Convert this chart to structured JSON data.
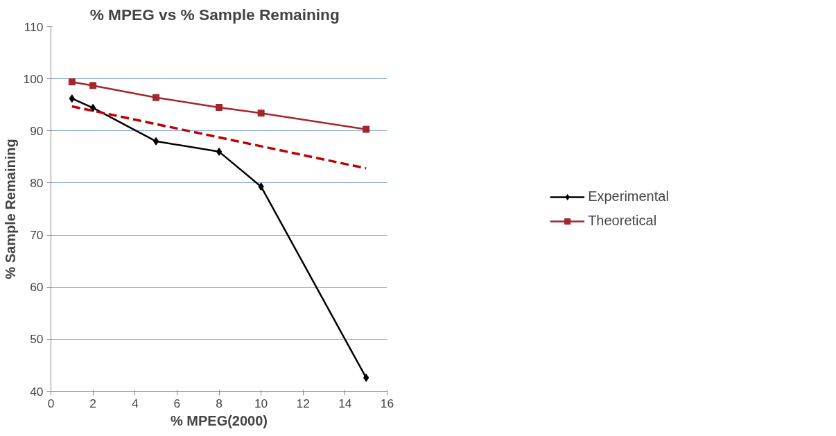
{
  "chart_data": {
    "type": "line",
    "title": "% MPEG  vs  % Sample Remaining",
    "xlabel": "% MPEG(2000)",
    "ylabel": "% Sample Remaining",
    "xlim": [
      0,
      16
    ],
    "xticks": [
      0,
      2,
      4,
      6,
      8,
      10,
      12,
      14,
      16
    ],
    "ylim": [
      40,
      110
    ],
    "yticks": [
      40,
      50,
      60,
      70,
      80,
      90,
      100,
      110
    ],
    "grid": "y",
    "legend": "right",
    "series": [
      {
        "name": "Experimental",
        "color": "#000000",
        "marker": "diamond",
        "line_style": "solid",
        "x": [
          1,
          2,
          5,
          8,
          10,
          15
        ],
        "values": [
          96.2,
          94.4,
          88.0,
          86.0,
          79.3,
          42.6
        ]
      },
      {
        "name": "Theoretical",
        "color": "#a3262b",
        "marker": "square",
        "line_style": "solid",
        "x": [
          1,
          2,
          5,
          8,
          10,
          15
        ],
        "values": [
          99.4,
          98.7,
          96.4,
          94.5,
          93.4,
          90.3
        ]
      },
      {
        "color": "#c00000",
        "marker": "none",
        "line_style": "dashed",
        "x": [
          1,
          15
        ],
        "values": [
          94.7,
          82.8
        ]
      }
    ]
  }
}
